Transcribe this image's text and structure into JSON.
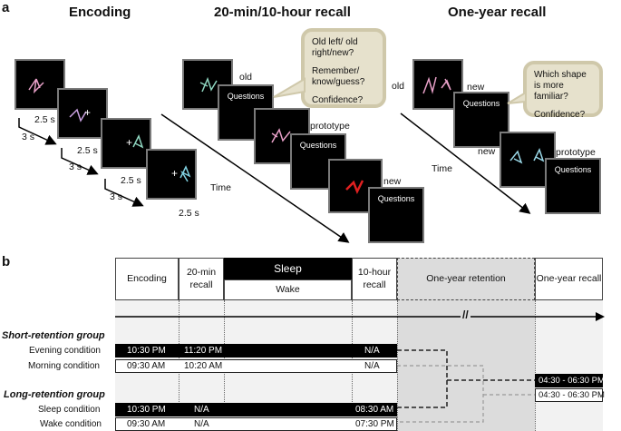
{
  "panel_a": {
    "letter": "a",
    "titles": {
      "encoding": "Encoding",
      "recall": "20-min/10-hour recall",
      "year": "One-year recall"
    },
    "timings": {
      "t1": "2.5 s",
      "t2": "3 s",
      "t3": "2.5 s",
      "t4": "3 s",
      "t5": "2.5 s",
      "t6": "3 s",
      "t7": "2.5 s"
    },
    "recall_labels": {
      "old": "old",
      "prototype": "prototype",
      "new": "new"
    },
    "year_labels": {
      "old": "old",
      "new_top": "new",
      "new_left": "new",
      "prototype": "prototype"
    },
    "questions": "Questions",
    "time": "Time",
    "bubble_recall": [
      "Old left/ old right/new?",
      "Remember/ know/guess?",
      "Confidence?"
    ],
    "bubble_year": [
      "Which shape is more familiar?",
      "Confidence?"
    ],
    "colors": {
      "bubble": "#e6e1cc",
      "screen_border": "#7a7a7a"
    }
  },
  "panel_b": {
    "letter": "b",
    "headers": {
      "encoding": "Encoding",
      "recall20": "20-min recall",
      "sleep": "Sleep",
      "wake": "Wake",
      "recall10": "10-hour recall",
      "retention": "One-year retention",
      "year_recall": "One-year recall"
    },
    "break_mark": "//",
    "short_group": "Short-retention group",
    "long_group": "Long-retention group",
    "rows": [
      {
        "label": "Evening condition",
        "enc": "10:30 PM",
        "r20": "11:20 PM",
        "r10": "N/A",
        "dark": true
      },
      {
        "label": "Morning condition",
        "enc": "09:30 AM",
        "r20": "10:20 AM",
        "r10": "N/A",
        "dark": false
      },
      {
        "label": "Sleep condition",
        "enc": "10:30 PM",
        "r20": "N/A",
        "r10": "08:30 AM",
        "dark": true
      },
      {
        "label": "Wake condition",
        "enc": "09:30 AM",
        "r20": "N/A",
        "r10": "07:30 PM",
        "dark": false
      }
    ],
    "year_times": {
      "dark": "04:30 - 06:30 PM",
      "light": "04:30 - 06:30 PM"
    }
  }
}
